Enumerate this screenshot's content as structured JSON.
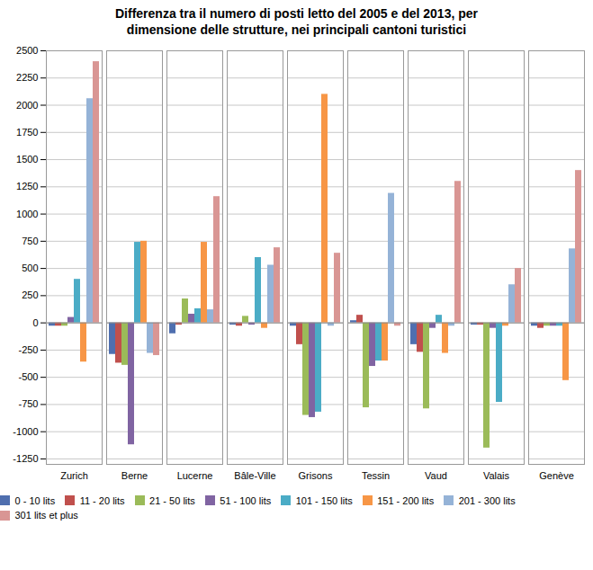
{
  "chart_data": {
    "type": "bar",
    "title": "Differenza tra il numero di posti letto del 2005 e del 2013, per\ndimensione delle strutture, nei principali cantoni turistici",
    "categories": [
      "Zurich",
      "Berne",
      "Lucerne",
      "Bâle-Ville",
      "Grisons",
      "Tessin",
      "Vaud",
      "Valais",
      "Genève"
    ],
    "series": [
      {
        "name": "0 - 10 lits",
        "color": "#4f6faf",
        "values": [
          -30,
          -290,
          -100,
          -20,
          -30,
          20,
          -200,
          -20,
          -30
        ]
      },
      {
        "name": "11 - 20 lits",
        "color": "#c0504d",
        "values": [
          -30,
          -370,
          -20,
          -30,
          -200,
          70,
          -270,
          -20,
          -50
        ]
      },
      {
        "name": "21 - 50 lits",
        "color": "#9bbb59",
        "values": [
          -30,
          -390,
          220,
          60,
          -850,
          -780,
          -790,
          -1150,
          -30
        ]
      },
      {
        "name": "51 - 100 lits",
        "color": "#8064a2",
        "values": [
          50,
          -1120,
          80,
          -20,
          -870,
          -400,
          -50,
          -50,
          -30
        ]
      },
      {
        "name": "101 - 150 lits",
        "color": "#4bacc6",
        "values": [
          400,
          740,
          130,
          600,
          -820,
          -350,
          70,
          -730,
          -30
        ]
      },
      {
        "name": "151 - 200 lits",
        "color": "#f79646",
        "values": [
          -360,
          750,
          740,
          -50,
          2100,
          -350,
          -280,
          -30,
          -530
        ]
      },
      {
        "name": "201 - 300 lits",
        "color": "#95b3d7",
        "values": [
          2060,
          -280,
          120,
          530,
          -30,
          1190,
          -30,
          350,
          680
        ]
      },
      {
        "name": "301 lits et plus",
        "color": "#d99694",
        "values": [
          2400,
          -300,
          1160,
          690,
          640,
          -30,
          1300,
          500,
          1400
        ]
      }
    ],
    "ylim": [
      -1300,
      2500
    ],
    "yticks": [
      -1250,
      -1000,
      -750,
      -500,
      -250,
      0,
      250,
      500,
      750,
      1000,
      1250,
      1500,
      1750,
      2000,
      2250,
      2500
    ],
    "grid": true,
    "legend": "bottom"
  }
}
